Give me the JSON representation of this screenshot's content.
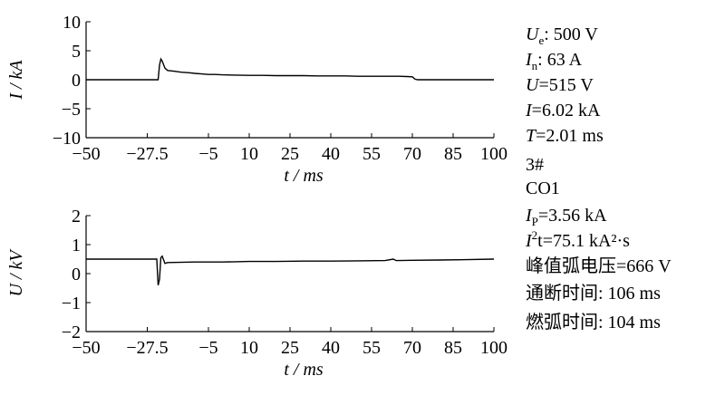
{
  "chart_data": [
    {
      "type": "line",
      "ylabel": "I / kA",
      "xlabel": "t / ms",
      "x": [
        -50,
        -25,
        -23.5,
        -23,
        -22.5,
        -22,
        -21,
        -20,
        -18,
        -15,
        -12,
        -10,
        -7.5,
        -5,
        -2.5,
        0,
        5,
        10,
        15,
        20,
        25,
        30,
        35,
        40,
        45,
        50,
        55,
        60,
        65,
        68,
        70,
        71,
        72,
        75,
        100
      ],
      "series": [
        {
          "color": "#000000",
          "values": [
            0,
            0,
            0,
            2.5,
            3.56,
            3.2,
            2,
            1.6,
            1.5,
            1.3,
            1.2,
            1.1,
            1.0,
            0.9,
            0.9,
            0.85,
            0.8,
            0.75,
            0.75,
            0.7,
            0.7,
            0.7,
            0.65,
            0.65,
            0.65,
            0.6,
            0.6,
            0.6,
            0.6,
            0.55,
            0.5,
            0.1,
            0,
            0,
            0
          ]
        }
      ],
      "xlim": [
        -50,
        100
      ],
      "xticks": [
        {
          "value": -50,
          "label": "−50"
        },
        {
          "value": -27.5,
          "label": "−27.5"
        },
        {
          "value": -5,
          "label": "−5"
        },
        10,
        25,
        40,
        55,
        70,
        85,
        100
      ],
      "ylim": [
        -10,
        10
      ],
      "yticks": [
        10,
        5,
        0,
        {
          "value": -5,
          "label": "−5"
        },
        {
          "value": -10,
          "label": "−10"
        }
      ]
    },
    {
      "type": "line",
      "ylabel": "U / kV",
      "xlabel": "t / ms",
      "x": [
        -50,
        -40,
        -30,
        -24,
        -23.5,
        -23,
        -22.5,
        -22,
        -21,
        -20,
        -10,
        0,
        10,
        20,
        30,
        40,
        50,
        60,
        63,
        64,
        65,
        70,
        80,
        90,
        100
      ],
      "series": [
        {
          "color": "#000000",
          "values": [
            0.5,
            0.5,
            0.5,
            0.5,
            -0.4,
            -0.2,
            0.55,
            0.6,
            0.35,
            0.38,
            0.4,
            0.4,
            0.42,
            0.42,
            0.43,
            0.43,
            0.44,
            0.45,
            0.5,
            0.45,
            0.45,
            0.46,
            0.47,
            0.48,
            0.5
          ]
        }
      ],
      "xlim": [
        -50,
        100
      ],
      "xticks": [
        {
          "value": -50,
          "label": "−50"
        },
        {
          "value": -27.5,
          "label": "−27.5"
        },
        {
          "value": -5,
          "label": "−5"
        },
        10,
        25,
        40,
        55,
        70,
        85,
        100
      ],
      "ylim": [
        -2,
        2
      ],
      "yticks": [
        2,
        1,
        0,
        {
          "value": -1,
          "label": "−1"
        },
        {
          "value": -2,
          "label": "−2"
        }
      ]
    }
  ],
  "annotations": [
    {
      "sym": "U",
      "sub": "e",
      "rest": ": 500 V"
    },
    {
      "sym": "I",
      "sub": "n",
      "rest": ": 63 A"
    },
    {
      "sym": "U",
      "rest": "=515 V"
    },
    {
      "sym": "I",
      "rest": "=6.02 kA"
    },
    {
      "sym": "T",
      "rest": "=2.01 ms"
    },
    {
      "rest": "3#"
    },
    {
      "rest": "CO1"
    },
    {
      "sym": "I",
      "sub": "P",
      "rest": "=3.56 kA"
    },
    {
      "sym": "I",
      "sup": "2",
      "rest": "t=75.1 kA²·s"
    },
    {
      "rest": "峰值弧电压=666 V"
    },
    {
      "rest": "通断时间: 106 ms"
    },
    {
      "rest": "燃弧时间: 104 ms"
    }
  ]
}
